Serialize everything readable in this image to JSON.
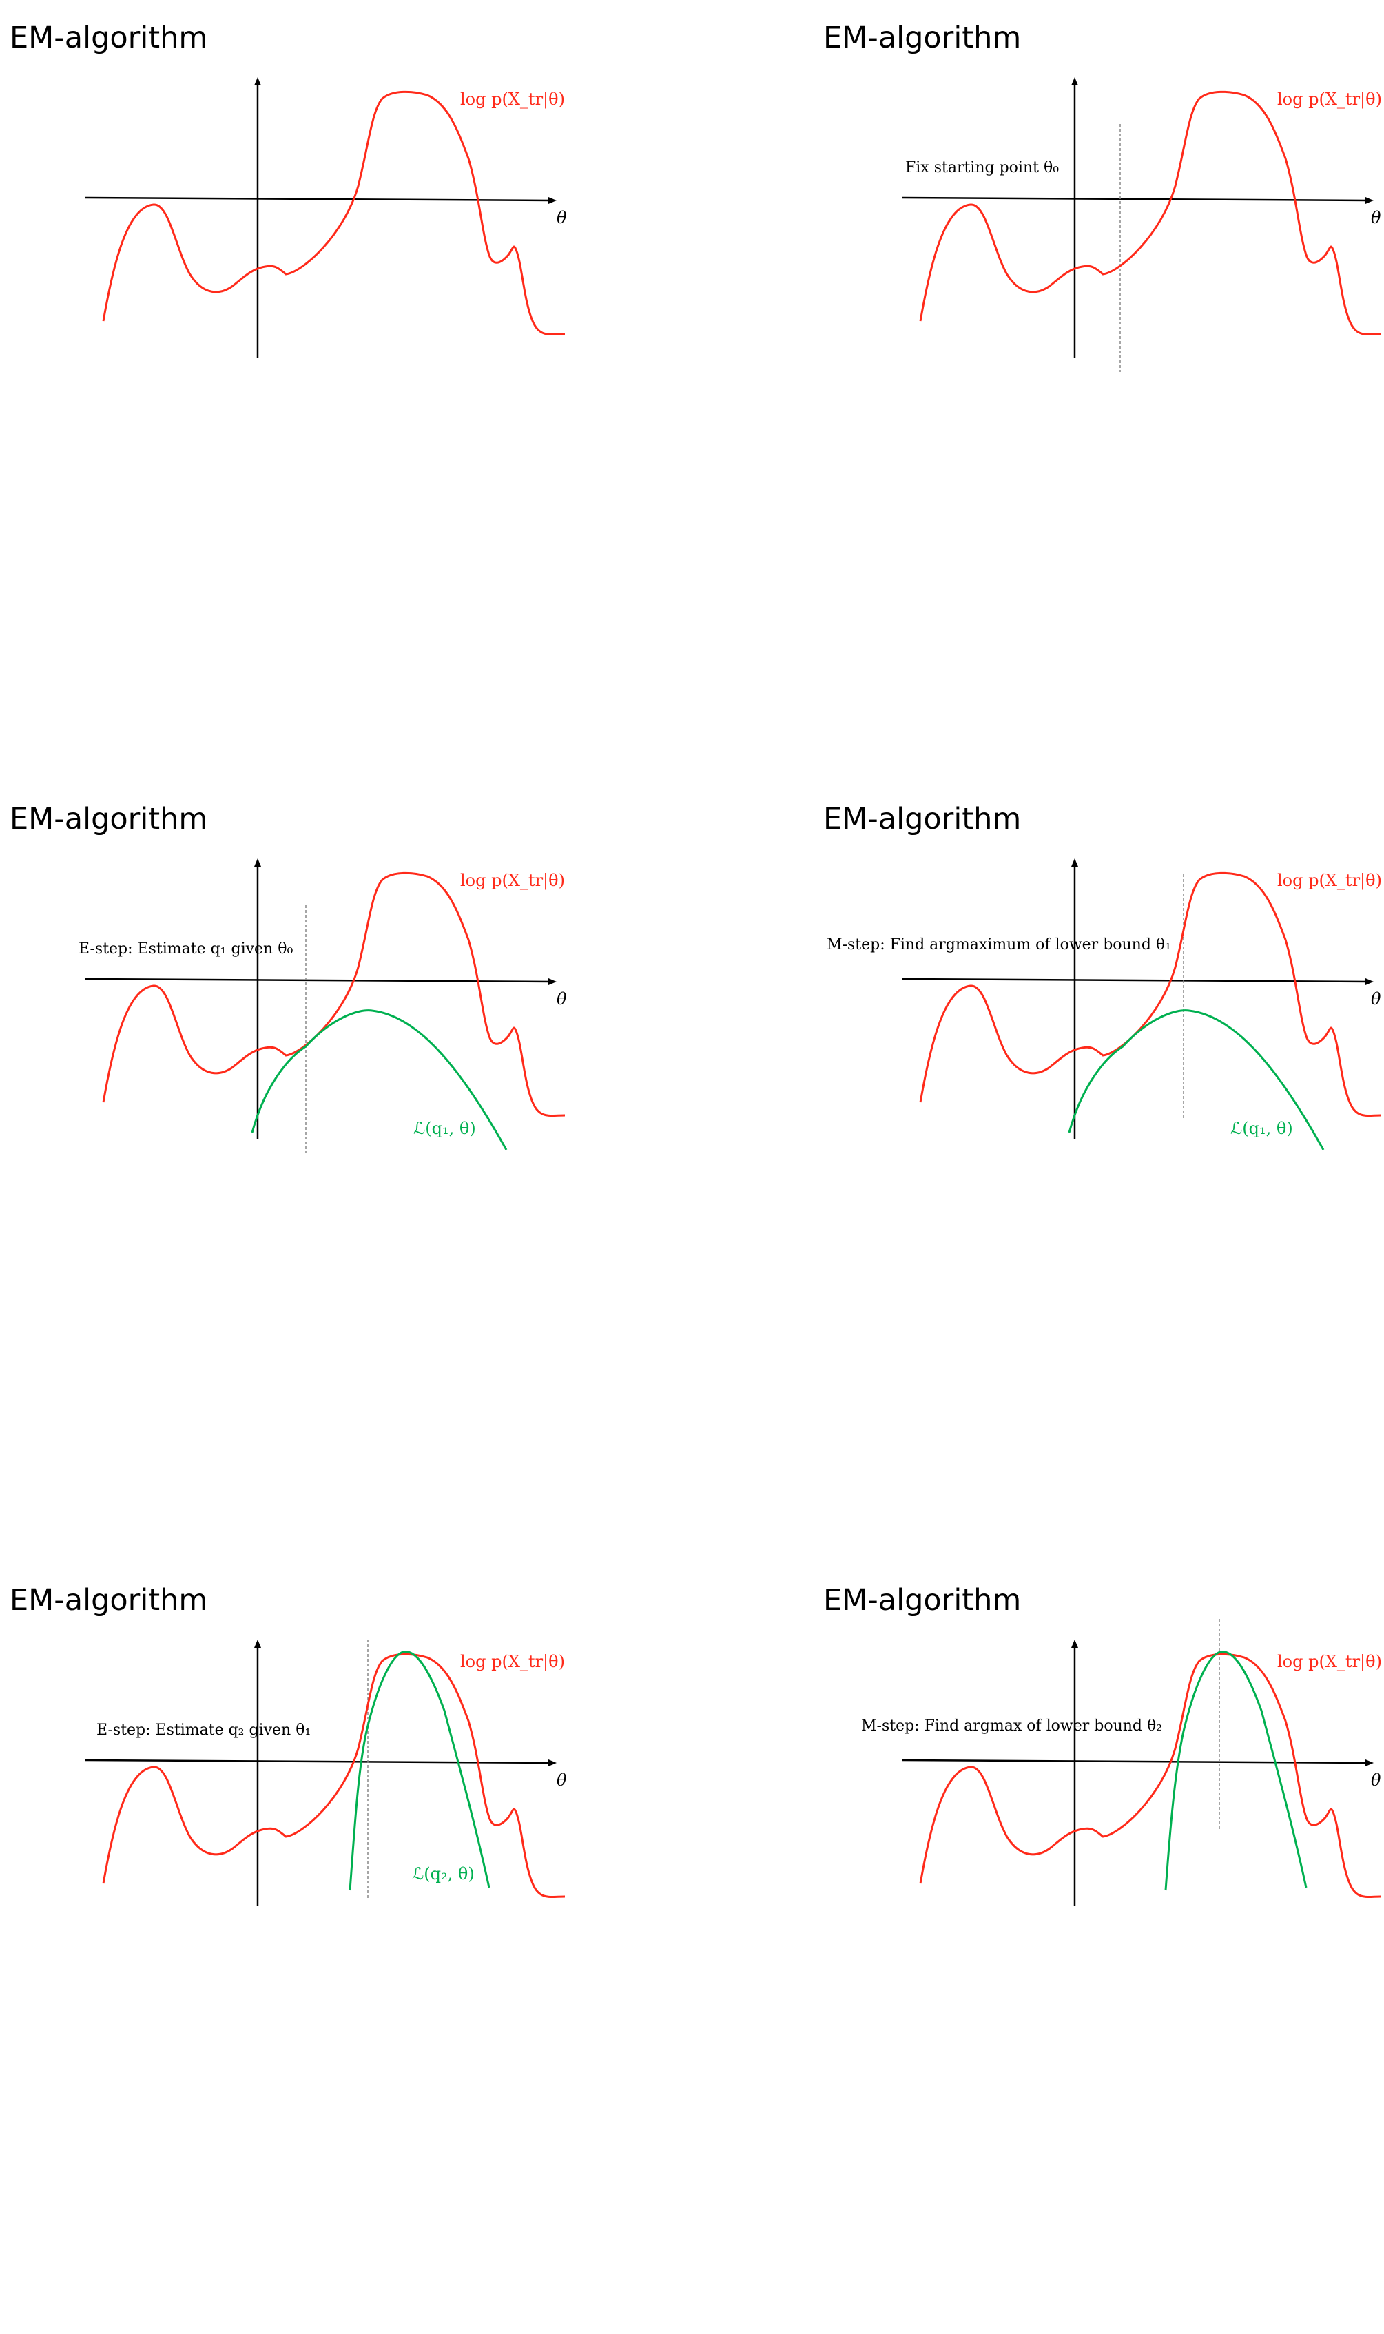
{
  "slides": [
    {
      "title": "EM-algorithm",
      "log_likelihood_label": "log p(X_tr|θ)",
      "axis_label": "θ",
      "annotation": "",
      "bound_label": "",
      "colors": {
        "curve": "#ff2a1a",
        "bound": "#00b050",
        "axis": "#000000",
        "guide": "#888888"
      }
    },
    {
      "title": "EM-algorithm",
      "log_likelihood_label": "log p(X_tr|θ)",
      "axis_label": "θ",
      "annotation": "Fix starting point θ₀",
      "bound_label": "",
      "colors": {
        "curve": "#ff2a1a",
        "bound": "#00b050",
        "axis": "#000000",
        "guide": "#888888"
      }
    },
    {
      "title": "EM-algorithm",
      "log_likelihood_label": "log p(X_tr|θ)",
      "axis_label": "θ",
      "annotation": "E-step: Estimate q₁ given θ₀",
      "bound_label": "ℒ(q₁, θ)",
      "colors": {
        "curve": "#ff2a1a",
        "bound": "#00b050",
        "axis": "#000000",
        "guide": "#888888"
      }
    },
    {
      "title": "EM-algorithm",
      "log_likelihood_label": "log p(X_tr|θ)",
      "axis_label": "θ",
      "annotation": "M-step: Find argmaximum of lower bound θ₁",
      "bound_label": "ℒ(q₁, θ)",
      "colors": {
        "curve": "#ff2a1a",
        "bound": "#00b050",
        "axis": "#000000",
        "guide": "#888888"
      }
    },
    {
      "title": "EM-algorithm",
      "log_likelihood_label": "log p(X_tr|θ)",
      "axis_label": "θ",
      "annotation": "E-step: Estimate q₂ given θ₁",
      "bound_label": "ℒ(q₂, θ)",
      "colors": {
        "curve": "#ff2a1a",
        "bound": "#00b050",
        "axis": "#000000",
        "guide": "#888888"
      }
    },
    {
      "title": "EM-algorithm",
      "log_likelihood_label": "log p(X_tr|θ)",
      "axis_label": "θ",
      "annotation": "M-step: Find argmax of lower bound θ₂",
      "bound_label": "",
      "colors": {
        "curve": "#ff2a1a",
        "bound": "#00b050",
        "axis": "#000000",
        "guide": "#888888"
      }
    }
  ]
}
